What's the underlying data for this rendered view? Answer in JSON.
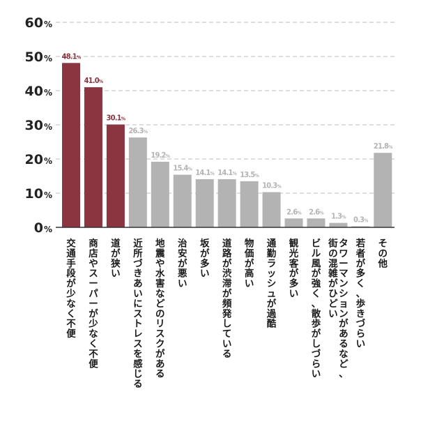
{
  "chart_data": {
    "type": "bar",
    "title": "",
    "xlabel": "",
    "ylabel": "",
    "ylim": [
      0,
      60
    ],
    "y_ticks": [
      0,
      10,
      20,
      30,
      40,
      50,
      60
    ],
    "y_unit": "%",
    "grid": true,
    "colors": {
      "highlight": "#8b3540",
      "normal": "#b3b3b3",
      "axis": "#333333",
      "grid": "#bdbdbd"
    },
    "categories": [
      [
        "交通手段が少なく不便"
      ],
      [
        "商店やスーパーが少なく不便"
      ],
      [
        "道が狭い"
      ],
      [
        "近所づきあいにストレスを感じる"
      ],
      [
        "地震や水害などのリスクがある"
      ],
      [
        "治安が悪い"
      ],
      [
        "坂が多い"
      ],
      [
        "道路が渋滞が頻発している"
      ],
      [
        "物価が高い"
      ],
      [
        "通勤ラッシュが過酷"
      ],
      [
        "観光客が多い"
      ],
      [
        "ビル風が強く、散歩がしづらい"
      ],
      [
        "タワーマンションがあるなど、",
        "街の混雑がひどい"
      ],
      [
        "若者が多く、歩きづらい"
      ],
      [
        "その他"
      ]
    ],
    "values": [
      48.1,
      41.0,
      30.1,
      26.3,
      19.2,
      15.4,
      14.1,
      14.1,
      13.5,
      10.3,
      2.6,
      2.6,
      1.3,
      0.3,
      21.8
    ],
    "value_labels": [
      "48.1%",
      "41.0%",
      "30.1%",
      "26.3%",
      "19.2%",
      "15.4%",
      "14.1%",
      "14.1%",
      "13.5%",
      "10.3%",
      "2.6%",
      "2.6%",
      "1.3%",
      "0.3%",
      "21.8%"
    ],
    "highlight": [
      true,
      true,
      true,
      false,
      false,
      false,
      false,
      false,
      false,
      false,
      false,
      false,
      false,
      false,
      false
    ]
  }
}
